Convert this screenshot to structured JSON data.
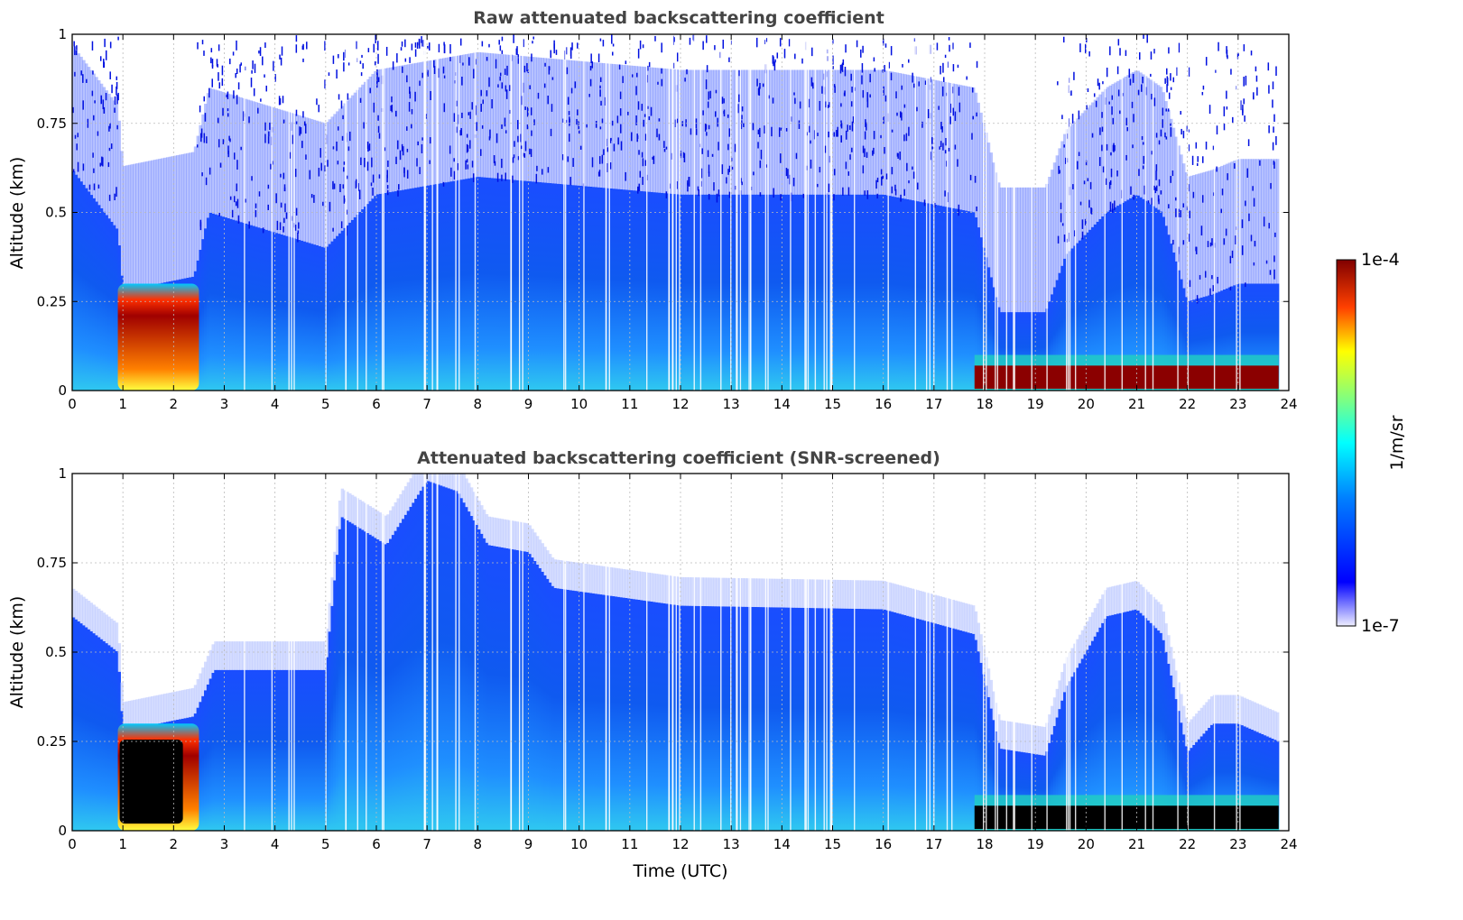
{
  "chart_data": [
    {
      "type": "heatmap",
      "title": "Raw attenuated backscattering coefficient",
      "xlabel": "",
      "ylabel": "Altitude (km)",
      "xlim": [
        0,
        24
      ],
      "ylim": [
        0,
        1
      ],
      "x_ticks": [
        "0",
        "1",
        "2",
        "3",
        "4",
        "5",
        "6",
        "7",
        "8",
        "9",
        "10",
        "11",
        "12",
        "13",
        "14",
        "15",
        "16",
        "17",
        "18",
        "19",
        "20",
        "21",
        "22",
        "23",
        "24"
      ],
      "y_ticks": [
        "0",
        "0.25",
        "0.5",
        "0.75",
        "1"
      ],
      "grid": true,
      "variant": "raw",
      "top_profile": [
        [
          0,
          0.62
        ],
        [
          0.9,
          0.45
        ],
        [
          1.0,
          0.28
        ],
        [
          2.4,
          0.32
        ],
        [
          2.7,
          0.5
        ],
        [
          5.0,
          0.4
        ],
        [
          6,
          0.55
        ],
        [
          8,
          0.6
        ],
        [
          12,
          0.55
        ],
        [
          16,
          0.55
        ],
        [
          17.8,
          0.5
        ],
        [
          18.3,
          0.22
        ],
        [
          19.2,
          0.22
        ],
        [
          19.6,
          0.38
        ],
        [
          20.4,
          0.5
        ],
        [
          21.0,
          0.55
        ],
        [
          21.5,
          0.5
        ],
        [
          22.0,
          0.25
        ],
        [
          22.5,
          0.27
        ],
        [
          23.0,
          0.3
        ],
        [
          23.8,
          0.3
        ]
      ],
      "surface_layer": {
        "x": [
          17.8,
          23.8
        ],
        "altitude": [
          0.0,
          0.07
        ]
      },
      "cloud_regions": [
        {
          "x": [
            0.9,
            2.5
          ],
          "altitude": [
            0.0,
            0.3
          ]
        }
      ]
    },
    {
      "type": "heatmap",
      "title": "Attenuated backscattering coefficient (SNR-screened)",
      "xlabel": "Time (UTC)",
      "ylabel": "Altitude (km)",
      "xlim": [
        0,
        24
      ],
      "ylim": [
        0,
        1
      ],
      "x_ticks": [
        "0",
        "1",
        "2",
        "3",
        "4",
        "5",
        "6",
        "7",
        "8",
        "9",
        "10",
        "11",
        "12",
        "13",
        "14",
        "15",
        "16",
        "17",
        "18",
        "19",
        "20",
        "21",
        "22",
        "23",
        "24"
      ],
      "y_ticks": [
        "0",
        "0.25",
        "0.5",
        "0.75",
        "1"
      ],
      "grid": true,
      "variant": "screened",
      "top_profile": [
        [
          0,
          0.6
        ],
        [
          0.9,
          0.5
        ],
        [
          1.0,
          0.28
        ],
        [
          2.4,
          0.32
        ],
        [
          2.8,
          0.45
        ],
        [
          5.0,
          0.45
        ],
        [
          5.3,
          0.88
        ],
        [
          6.2,
          0.8
        ],
        [
          7.0,
          0.98
        ],
        [
          7.6,
          0.95
        ],
        [
          8.2,
          0.8
        ],
        [
          9.0,
          0.78
        ],
        [
          9.5,
          0.68
        ],
        [
          12,
          0.63
        ],
        [
          16,
          0.62
        ],
        [
          17.8,
          0.55
        ],
        [
          18.3,
          0.23
        ],
        [
          19.2,
          0.21
        ],
        [
          19.6,
          0.4
        ],
        [
          20.4,
          0.6
        ],
        [
          21.0,
          0.62
        ],
        [
          21.5,
          0.55
        ],
        [
          22.0,
          0.22
        ],
        [
          22.5,
          0.3
        ],
        [
          23.0,
          0.3
        ],
        [
          23.8,
          0.25
        ]
      ],
      "surface_layer": {
        "x": [
          17.8,
          23.8
        ],
        "altitude": [
          0.0,
          0.07
        ]
      },
      "cloud_regions": [
        {
          "x": [
            0.9,
            2.5
          ],
          "altitude": [
            0.0,
            0.3
          ]
        }
      ]
    }
  ],
  "colorbar": {
    "label": "1/m/sr",
    "max_label": "1e-4",
    "min_label": "1e-7",
    "scale": "log"
  },
  "colors": {
    "title": "#444444",
    "grid": "#bbbbbb",
    "surface_raw": "#8b0000",
    "surface_screened": "#000000"
  }
}
